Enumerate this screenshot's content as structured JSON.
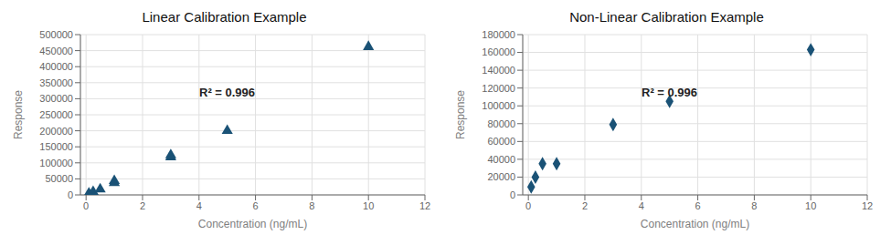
{
  "chart_data": [
    {
      "type": "scatter",
      "title": "Linear Calibration Example",
      "x": [
        0.1,
        0.25,
        0.5,
        1.0,
        1.0,
        3.0,
        3.0,
        5.0,
        10.0
      ],
      "values": [
        5000,
        10000,
        18000,
        38000,
        44000,
        118000,
        124000,
        200000,
        462000
      ],
      "annotation": "R² = 0.996",
      "xlim": [
        -0.2,
        12
      ],
      "ylim": [
        0,
        500000
      ],
      "xticks": [
        0,
        2,
        4,
        6,
        8,
        10,
        12
      ],
      "yticks": [
        0,
        50000,
        100000,
        150000,
        200000,
        250000,
        300000,
        350000,
        400000,
        450000,
        500000
      ],
      "xlabel": "Concentration (ng/mL)",
      "ylabel": "Response",
      "marker": "triangle",
      "color": "#1a5276",
      "grid": true
    },
    {
      "type": "scatter",
      "title": "Non-Linear Calibration Example",
      "x": [
        0.1,
        0.25,
        0.5,
        1.0,
        3.0,
        5.0,
        10.0
      ],
      "values": [
        9000,
        20000,
        35000,
        35000,
        79000,
        105000,
        163000
      ],
      "annotation": "R² = 0.996",
      "xlim": [
        -0.2,
        12
      ],
      "ylim": [
        0,
        180000
      ],
      "xticks": [
        0,
        2,
        4,
        6,
        8,
        10,
        12
      ],
      "yticks": [
        0,
        20000,
        40000,
        60000,
        80000,
        100000,
        120000,
        140000,
        160000,
        180000
      ],
      "xlabel": "Concentration (ng/mL)",
      "ylabel": "Response",
      "marker": "diamond",
      "color": "#1a5276",
      "grid": true
    }
  ]
}
